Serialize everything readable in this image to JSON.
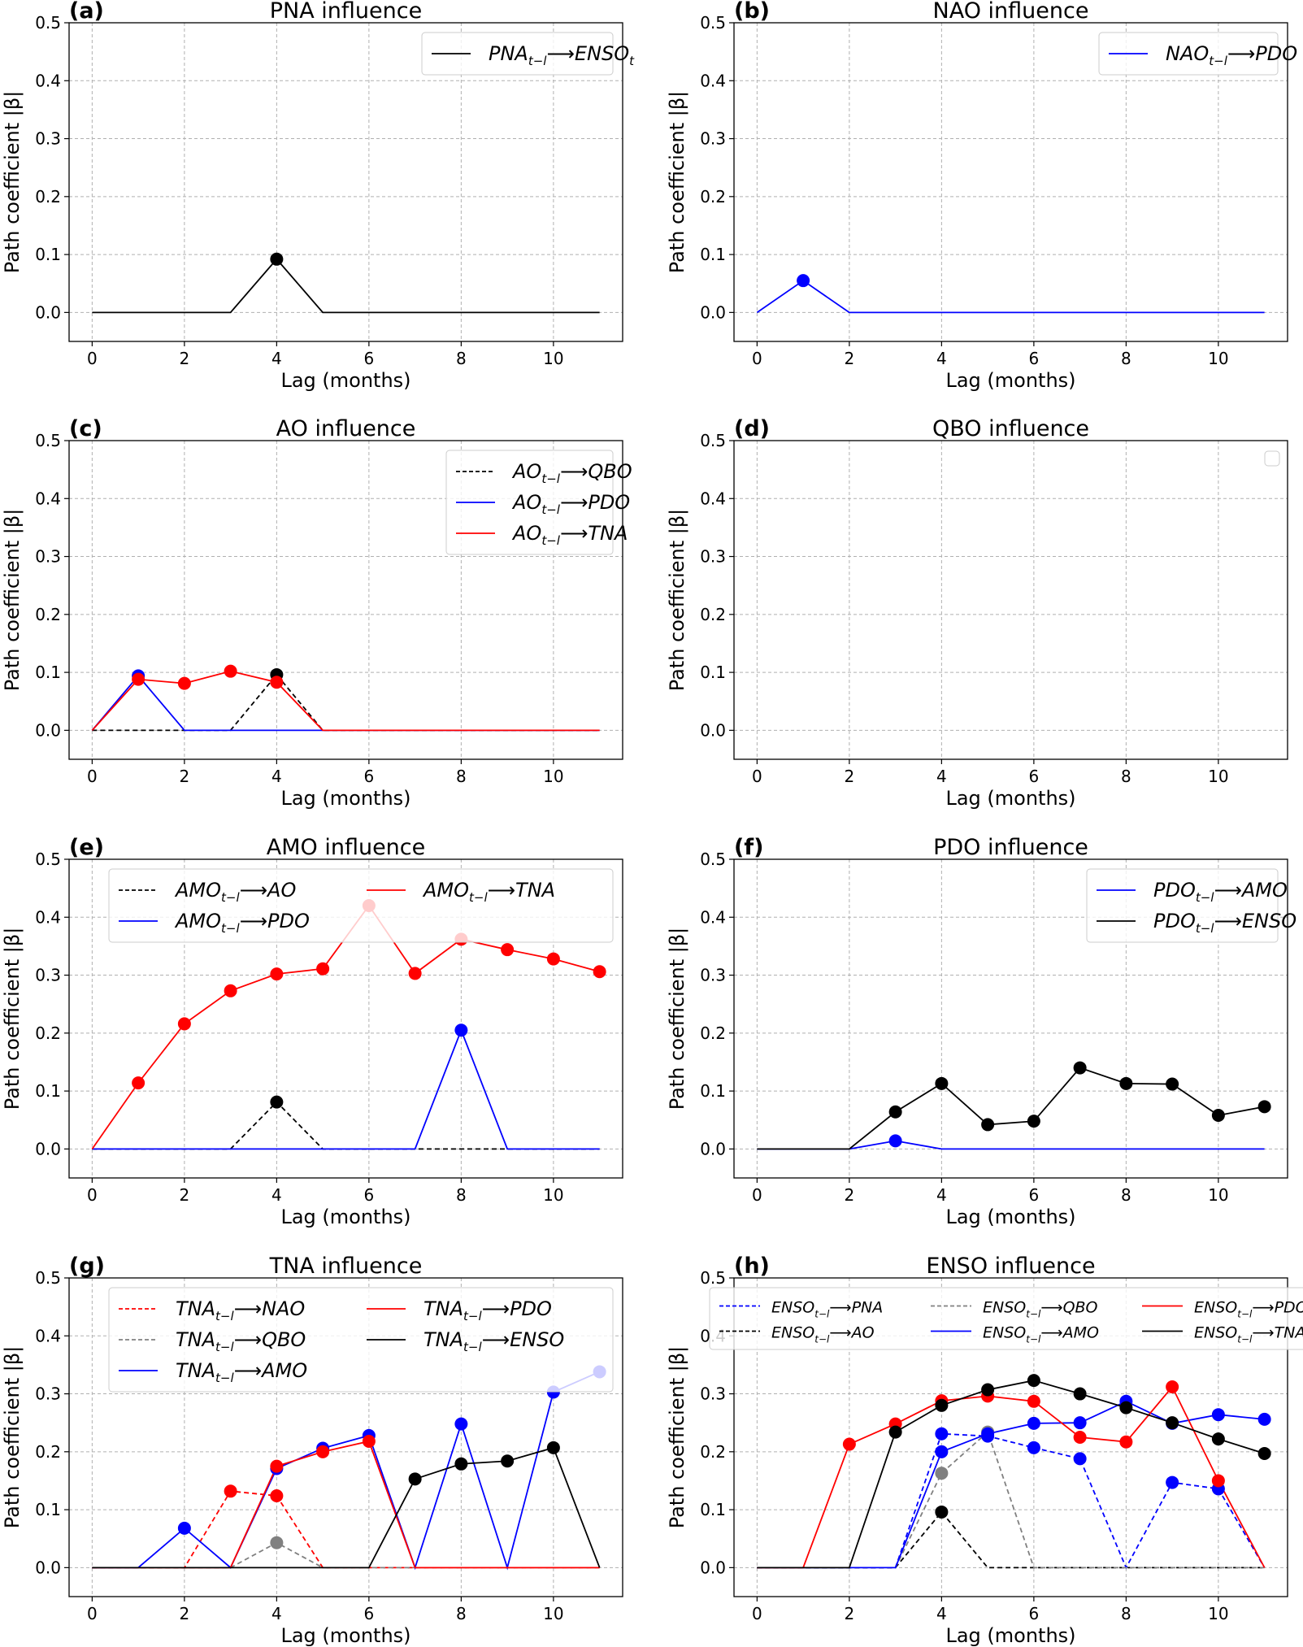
{
  "figure": {
    "ylabel": "Path coefficient |β|",
    "xlabel": "Lag (months)"
  },
  "chart_data": [
    {
      "type": "line",
      "panel": "(a)",
      "title": "PNA influence",
      "xlabel": "Lag (months)",
      "ylabel": "Path coefficient |β|",
      "x": [
        0,
        1,
        2,
        3,
        4,
        5,
        6,
        7,
        8,
        9,
        10,
        11
      ],
      "xticks": [
        "0",
        "2",
        "4",
        "6",
        "8",
        "10"
      ],
      "yticks": [
        "0.0",
        "0.1",
        "0.2",
        "0.3",
        "0.4",
        "0.5"
      ],
      "xlim": [
        -0.5,
        11.5
      ],
      "ylim": [
        -0.05,
        0.5
      ],
      "grid": true,
      "legend_position": "top-right",
      "legend_columns": 1,
      "series": [
        {
          "name": "PNA_{t-l} ⟶ ENSO_t",
          "base": "PNA",
          "sub": "t−l",
          "target": "ENSO",
          "target_sub": "t",
          "color": "#000000",
          "dash": false,
          "values": [
            0,
            0,
            0,
            0,
            0.092,
            0,
            0,
            0,
            0,
            0,
            0,
            0
          ]
        }
      ]
    },
    {
      "type": "line",
      "panel": "(b)",
      "title": "NAO influence",
      "xlabel": "Lag (months)",
      "ylabel": "Path coefficient |β|",
      "x": [
        0,
        1,
        2,
        3,
        4,
        5,
        6,
        7,
        8,
        9,
        10,
        11
      ],
      "xticks": [
        "0",
        "2",
        "4",
        "6",
        "8",
        "10"
      ],
      "yticks": [
        "0.0",
        "0.1",
        "0.2",
        "0.3",
        "0.4",
        "0.5"
      ],
      "xlim": [
        -0.5,
        11.5
      ],
      "ylim": [
        -0.05,
        0.5
      ],
      "grid": true,
      "legend_position": "top-right",
      "legend_columns": 1,
      "series": [
        {
          "name": "NAO_{t-l} ⟶ PDO",
          "base": "NAO",
          "sub": "t−l",
          "target": "PDO",
          "color": "#0000ff",
          "dash": false,
          "values": [
            0,
            0.055,
            0,
            0,
            0,
            0,
            0,
            0,
            0,
            0,
            0,
            0
          ]
        }
      ]
    },
    {
      "type": "line",
      "panel": "(c)",
      "title": "AO influence",
      "xlabel": "Lag (months)",
      "ylabel": "Path coefficient |β|",
      "x": [
        0,
        1,
        2,
        3,
        4,
        5,
        6,
        7,
        8,
        9,
        10,
        11
      ],
      "xticks": [
        "0",
        "2",
        "4",
        "6",
        "8",
        "10"
      ],
      "yticks": [
        "0.0",
        "0.1",
        "0.2",
        "0.3",
        "0.4",
        "0.5"
      ],
      "xlim": [
        -0.5,
        11.5
      ],
      "ylim": [
        -0.05,
        0.5
      ],
      "grid": true,
      "legend_position": "top-right",
      "legend_columns": 1,
      "series": [
        {
          "name": "AO_{t-l} ⟶ QBO",
          "base": "AO",
          "sub": "t−l",
          "target": "QBO",
          "color": "#000000",
          "dash": true,
          "values": [
            0,
            0,
            0,
            0,
            0.096,
            0,
            0,
            0,
            0,
            0,
            0,
            0
          ]
        },
        {
          "name": "AO_{t-l} ⟶ PDO",
          "base": "AO",
          "sub": "t−l",
          "target": "PDO",
          "color": "#0000ff",
          "dash": false,
          "values": [
            0,
            0.094,
            0,
            0,
            0,
            0,
            0,
            0,
            0,
            0,
            0,
            0
          ]
        },
        {
          "name": "AO_{t-l} ⟶ TNA",
          "base": "AO",
          "sub": "t−l",
          "target": "TNA",
          "color": "#ff0000",
          "dash": false,
          "values": [
            0,
            0.088,
            0.081,
            0.102,
            0.083,
            0,
            0,
            0,
            0,
            0,
            0,
            0
          ]
        }
      ]
    },
    {
      "type": "line",
      "panel": "(d)",
      "title": "QBO influence",
      "xlabel": "Lag (months)",
      "ylabel": "Path coefficient |β|",
      "x": [
        0,
        1,
        2,
        3,
        4,
        5,
        6,
        7,
        8,
        9,
        10,
        11
      ],
      "xticks": [
        "0",
        "2",
        "4",
        "6",
        "8",
        "10"
      ],
      "yticks": [
        "0.0",
        "0.1",
        "0.2",
        "0.3",
        "0.4",
        "0.5"
      ],
      "xlim": [
        -0.5,
        11.5
      ],
      "ylim": [
        -0.05,
        0.5
      ],
      "grid": true,
      "legend_position": "top-right",
      "legend_columns": 1,
      "legend_empty": true,
      "series": []
    },
    {
      "type": "line",
      "panel": "(e)",
      "title": "AMO influence",
      "xlabel": "Lag (months)",
      "ylabel": "Path coefficient |β|",
      "x": [
        0,
        1,
        2,
        3,
        4,
        5,
        6,
        7,
        8,
        9,
        10,
        11
      ],
      "xticks": [
        "0",
        "2",
        "4",
        "6",
        "8",
        "10"
      ],
      "yticks": [
        "0.0",
        "0.1",
        "0.2",
        "0.3",
        "0.4",
        "0.5"
      ],
      "xlim": [
        -0.5,
        11.5
      ],
      "ylim": [
        -0.05,
        0.5
      ],
      "grid": true,
      "legend_position": "top-right",
      "legend_columns": 2,
      "series": [
        {
          "name": "AMO_{t-l} ⟶ AO",
          "base": "AMO",
          "sub": "t−l",
          "target": "AO",
          "color": "#000000",
          "dash": true,
          "values": [
            0,
            0,
            0,
            0,
            0.081,
            0,
            0,
            0,
            0,
            0,
            0,
            0
          ]
        },
        {
          "name": "AMO_{t-l} ⟶ PDO",
          "base": "AMO",
          "sub": "t−l",
          "target": "PDO",
          "color": "#0000ff",
          "dash": false,
          "values": [
            0,
            0,
            0,
            0,
            0,
            0,
            0,
            0,
            0.205,
            0,
            0,
            0
          ]
        },
        {
          "name": "AMO_{t-l} ⟶ TNA",
          "base": "AMO",
          "sub": "t−l",
          "target": "TNA",
          "color": "#ff0000",
          "dash": false,
          "values": [
            0,
            0.114,
            0.216,
            0.273,
            0.302,
            0.311,
            0.42,
            0.303,
            0.362,
            0.344,
            0.328,
            0.306
          ]
        }
      ]
    },
    {
      "type": "line",
      "panel": "(f)",
      "title": "PDO influence",
      "xlabel": "Lag (months)",
      "ylabel": "Path coefficient |β|",
      "x": [
        0,
        1,
        2,
        3,
        4,
        5,
        6,
        7,
        8,
        9,
        10,
        11
      ],
      "xticks": [
        "0",
        "2",
        "4",
        "6",
        "8",
        "10"
      ],
      "yticks": [
        "0.0",
        "0.1",
        "0.2",
        "0.3",
        "0.4",
        "0.5"
      ],
      "xlim": [
        -0.5,
        11.5
      ],
      "ylim": [
        -0.05,
        0.5
      ],
      "grid": true,
      "legend_position": "top-right",
      "legend_columns": 1,
      "series": [
        {
          "name": "PDO_{t-l} ⟶ AMO",
          "base": "PDO",
          "sub": "t−l",
          "target": "AMO",
          "color": "#0000ff",
          "dash": false,
          "values": [
            0,
            0,
            0,
            0.014,
            0,
            0,
            0,
            0,
            0,
            0,
            0,
            0
          ]
        },
        {
          "name": "PDO_{t-l} ⟶ ENSO",
          "base": "PDO",
          "sub": "t−l",
          "target": "ENSO",
          "color": "#000000",
          "dash": false,
          "values": [
            0,
            0,
            0,
            0.064,
            0.113,
            0.042,
            0.048,
            0.14,
            0.113,
            0.112,
            0.058,
            0.073
          ]
        }
      ]
    },
    {
      "type": "line",
      "panel": "(g)",
      "title": "TNA influence",
      "xlabel": "Lag (months)",
      "ylabel": "Path coefficient |β|",
      "x": [
        0,
        1,
        2,
        3,
        4,
        5,
        6,
        7,
        8,
        9,
        10,
        11
      ],
      "xticks": [
        "0",
        "2",
        "4",
        "6",
        "8",
        "10"
      ],
      "yticks": [
        "0.0",
        "0.1",
        "0.2",
        "0.3",
        "0.4",
        "0.5"
      ],
      "xlim": [
        -0.5,
        11.5
      ],
      "ylim": [
        -0.05,
        0.5
      ],
      "grid": true,
      "legend_position": "top-right",
      "legend_columns": 2,
      "series": [
        {
          "name": "TNA_{t-l} ⟶ NAO",
          "base": "TNA",
          "sub": "t−l",
          "target": "NAO",
          "color": "#ff0000",
          "dash": true,
          "values": [
            0,
            0,
            0,
            0.132,
            0.124,
            0,
            0,
            0,
            0,
            0,
            0,
            0
          ]
        },
        {
          "name": "TNA_{t-l} ⟶ QBO",
          "base": "TNA",
          "sub": "t−l",
          "target": "QBO",
          "color": "#808080",
          "dash": true,
          "values": [
            0,
            0,
            0,
            0,
            0.043,
            0,
            0,
            0,
            0,
            0,
            0,
            0
          ]
        },
        {
          "name": "TNA_{t-l} ⟶ AMO",
          "base": "TNA",
          "sub": "t−l",
          "target": "AMO",
          "color": "#0000ff",
          "dash": false,
          "values": [
            0,
            0,
            0.068,
            0,
            0.171,
            0.206,
            0.228,
            0,
            0.248,
            0,
            0.303,
            0.338
          ]
        },
        {
          "name": "TNA_{t-l} ⟶ PDO",
          "base": "TNA",
          "sub": "t−l",
          "target": "PDO",
          "color": "#ff0000",
          "dash": false,
          "values": [
            0,
            0,
            0,
            0,
            0.175,
            0.2,
            0.218,
            0,
            0,
            0,
            0,
            0
          ]
        },
        {
          "name": "TNA_{t-l} ⟶ ENSO",
          "base": "TNA",
          "sub": "t−l",
          "target": "ENSO",
          "color": "#000000",
          "dash": false,
          "values": [
            0,
            0,
            0,
            0,
            0,
            0,
            0,
            0.153,
            0.179,
            0.184,
            0.207,
            0
          ]
        }
      ]
    },
    {
      "type": "line",
      "panel": "(h)",
      "title": "ENSO influence",
      "xlabel": "Lag (months)",
      "ylabel": "Path coefficient |β|",
      "x": [
        0,
        1,
        2,
        3,
        4,
        5,
        6,
        7,
        8,
        9,
        10,
        11
      ],
      "xticks": [
        "0",
        "2",
        "4",
        "6",
        "8",
        "10"
      ],
      "yticks": [
        "0.0",
        "0.1",
        "0.2",
        "0.3",
        "0.4",
        "0.5"
      ],
      "xlim": [
        -0.5,
        11.5
      ],
      "ylim": [
        -0.05,
        0.5
      ],
      "grid": true,
      "legend_position": "top",
      "legend_columns": 3,
      "series": [
        {
          "name": "ENSO_{t-l} ⟶ PNA",
          "base": "ENSO",
          "sub": "t−l",
          "target": "PNA",
          "color": "#0000ff",
          "dash": true,
          "values": [
            0,
            0,
            0,
            0,
            0.231,
            0.227,
            0.207,
            0.188,
            0,
            0.147,
            0.136,
            0
          ]
        },
        {
          "name": "ENSO_{t-l} ⟶ AO",
          "base": "ENSO",
          "sub": "t−l",
          "target": "AO",
          "color": "#000000",
          "dash": true,
          "values": [
            0,
            0,
            0,
            0,
            0.096,
            0,
            0,
            0,
            0,
            0,
            0,
            0
          ]
        },
        {
          "name": "ENSO_{t-l} ⟶ QBO",
          "base": "ENSO",
          "sub": "t−l",
          "target": "QBO",
          "color": "#808080",
          "dash": true,
          "values": [
            0,
            0,
            0,
            0,
            0.163,
            0.234,
            0,
            0,
            0,
            0,
            0,
            0
          ]
        },
        {
          "name": "ENSO_{t-l} ⟶ AMO",
          "base": "ENSO",
          "sub": "t−l",
          "target": "AMO",
          "color": "#0000ff",
          "dash": false,
          "values": [
            0,
            0,
            0,
            0,
            0.2,
            0.231,
            0.249,
            0.25,
            0.287,
            0.249,
            0.264,
            0.256
          ]
        },
        {
          "name": "ENSO_{t-l} ⟶ PDO",
          "base": "ENSO",
          "sub": "t−l",
          "target": "PDO",
          "color": "#ff0000",
          "dash": false,
          "values": [
            0,
            0,
            0.213,
            0.248,
            0.288,
            0.296,
            0.287,
            0.225,
            0.217,
            0.312,
            0.15,
            0
          ]
        },
        {
          "name": "ENSO_{t-l} ⟶ TNA",
          "base": "ENSO",
          "sub": "t−l",
          "target": "TNA",
          "color": "#000000",
          "dash": false,
          "values": [
            0,
            0,
            0,
            0.234,
            0.28,
            0.307,
            0.323,
            0.3,
            0.276,
            0.25,
            0.222,
            0.197
          ]
        }
      ]
    }
  ]
}
